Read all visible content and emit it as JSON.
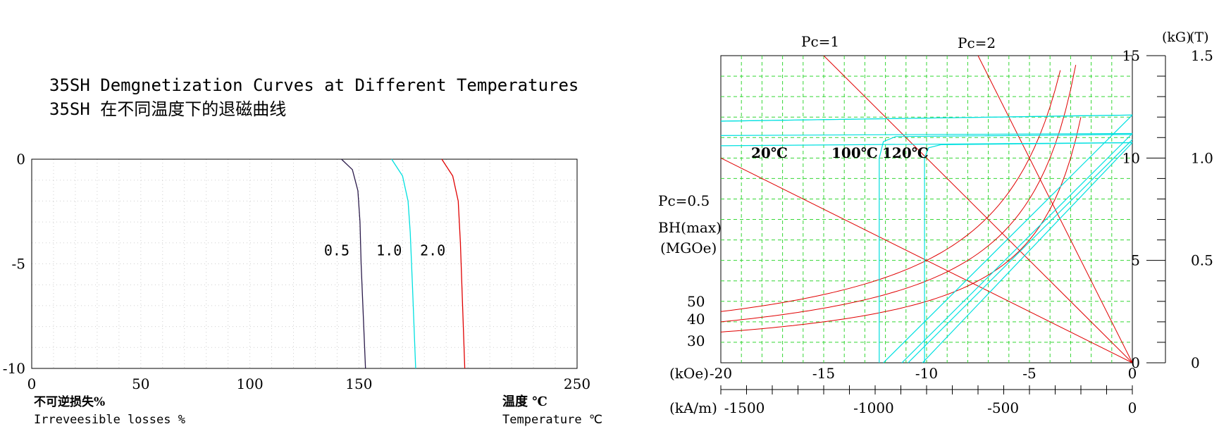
{
  "chart_data": [
    {
      "type": "line",
      "title": "35SH Demgnetization Curves at Different Temperatures",
      "subtitle": "35SH 在不同温度下的退磁曲线",
      "xlabel": "温度 ℃",
      "xlabel_en": "Temperature ℃",
      "ylabel": "不可逆损失%",
      "ylabel_en": "Irreveesible losses %",
      "xlim": [
        0,
        250
      ],
      "ylim": [
        -10,
        0
      ],
      "xticks": [
        "0",
        "50",
        "100",
        "150",
        "250"
      ],
      "yticks": [
        "0",
        "-5",
        "-10"
      ],
      "grid": true,
      "series": [
        {
          "name": "0.5",
          "color": "#2a1a4a",
          "points": [
            [
              142,
              0
            ],
            [
              147,
              -0.5
            ],
            [
              149.5,
              -1.5
            ],
            [
              150.5,
              -3
            ],
            [
              151,
              -5
            ],
            [
              152,
              -7.5
            ],
            [
              153,
              -10
            ]
          ]
        },
        {
          "name": "1.0",
          "color": "#00e0e0",
          "points": [
            [
              165,
              0
            ],
            [
              170,
              -0.8
            ],
            [
              172.5,
              -2
            ],
            [
              173.5,
              -3.5
            ],
            [
              174.5,
              -6
            ],
            [
              176,
              -10
            ]
          ]
        },
        {
          "name": "2.0",
          "color": "#e00000",
          "points": [
            [
              188,
              0
            ],
            [
              193,
              -0.8
            ],
            [
              195.5,
              -2
            ],
            [
              196.5,
              -4
            ],
            [
              197.5,
              -7
            ],
            [
              198.5,
              -10
            ]
          ]
        }
      ]
    },
    {
      "type": "line",
      "title": "",
      "x_top_label": "(kOe)",
      "x_bottom_label": "(kA/m)",
      "y_right_label_1": "(kG)",
      "y_right_label_2": "(T)",
      "xlim": [
        -20,
        0
      ],
      "ylim": [
        0,
        15
      ],
      "x_kOe_ticks": [
        "-20",
        "-15",
        "-10",
        "-5",
        "0"
      ],
      "x_kAm_ticks": [
        "-1500",
        "-1000",
        "-500",
        "0"
      ],
      "y_kG_ticks": [
        "0",
        "5",
        "10",
        "15"
      ],
      "y_T_ticks": [
        "0",
        "0.5",
        "1.0",
        "1.5"
      ],
      "grid": true,
      "temperature_labels": [
        "20℃",
        "100℃",
        "120℃"
      ],
      "pc_labels": [
        "Pc=1",
        "Pc=2",
        "Pc=0.5"
      ],
      "bhmax_label": "BH(max)",
      "bhmax_unit": "(MGOe)",
      "bhmax_values": [
        50,
        40,
        30
      ],
      "pc_lines": [
        {
          "name": "Pc=0.5",
          "from": [
            -20,
            10
          ],
          "to": [
            0,
            0
          ]
        },
        {
          "name": "Pc=1",
          "from": [
            -15,
            15
          ],
          "to": [
            0,
            0
          ]
        },
        {
          "name": "Pc=2",
          "from": [
            -7.5,
            15
          ],
          "to": [
            0,
            0
          ]
        }
      ],
      "bhmax_curves": [
        {
          "name": "50",
          "value": 50
        },
        {
          "name": "40",
          "value": 40
        },
        {
          "name": "30",
          "value": 30
        }
      ],
      "b_lines": [
        {
          "name": "B 20℃",
          "points": [
            [
              -20,
              11.8
            ],
            [
              0,
              12.1
            ]
          ]
        },
        {
          "name": "B 100℃",
          "points": [
            [
              -20,
              11.1
            ],
            [
              0,
              11.2
            ]
          ]
        },
        {
          "name": "B 120℃",
          "points": [
            [
              -20,
              10.6
            ],
            [
              0,
              10.75
            ]
          ]
        }
      ],
      "j_curves": [
        {
          "name": "J 20℃",
          "points": [
            [
              -20,
              11.8
            ],
            [
              0,
              12.1
            ]
          ]
        },
        {
          "name": "J 100℃",
          "points": [
            [
              -12.3,
              0
            ],
            [
              -12.3,
              10
            ],
            [
              -12.1,
              10.8
            ],
            [
              -11.5,
              11.05
            ],
            [
              0,
              11.15
            ]
          ]
        },
        {
          "name": "J 120℃",
          "points": [
            [
              -10.1,
              0
            ],
            [
              -10.1,
              10
            ],
            [
              -9.9,
              10.5
            ],
            [
              -9.3,
              10.65
            ],
            [
              0,
              10.75
            ]
          ]
        }
      ],
      "bh_curves": [
        {
          "name": "BH 20℃",
          "points": [
            [
              -12.1,
              0
            ],
            [
              0,
              12.1
            ]
          ]
        },
        {
          "name": "BH 100℃ a",
          "points": [
            [
              -11.2,
              0
            ],
            [
              0,
              11.2
            ]
          ]
        },
        {
          "name": "BH 100℃ b",
          "points": [
            [
              -10.9,
              0
            ],
            [
              0,
              10.9
            ]
          ]
        },
        {
          "name": "BH 120℃",
          "points": [
            [
              -10.2,
              0
            ],
            [
              0,
              10.75
            ]
          ]
        }
      ]
    }
  ]
}
